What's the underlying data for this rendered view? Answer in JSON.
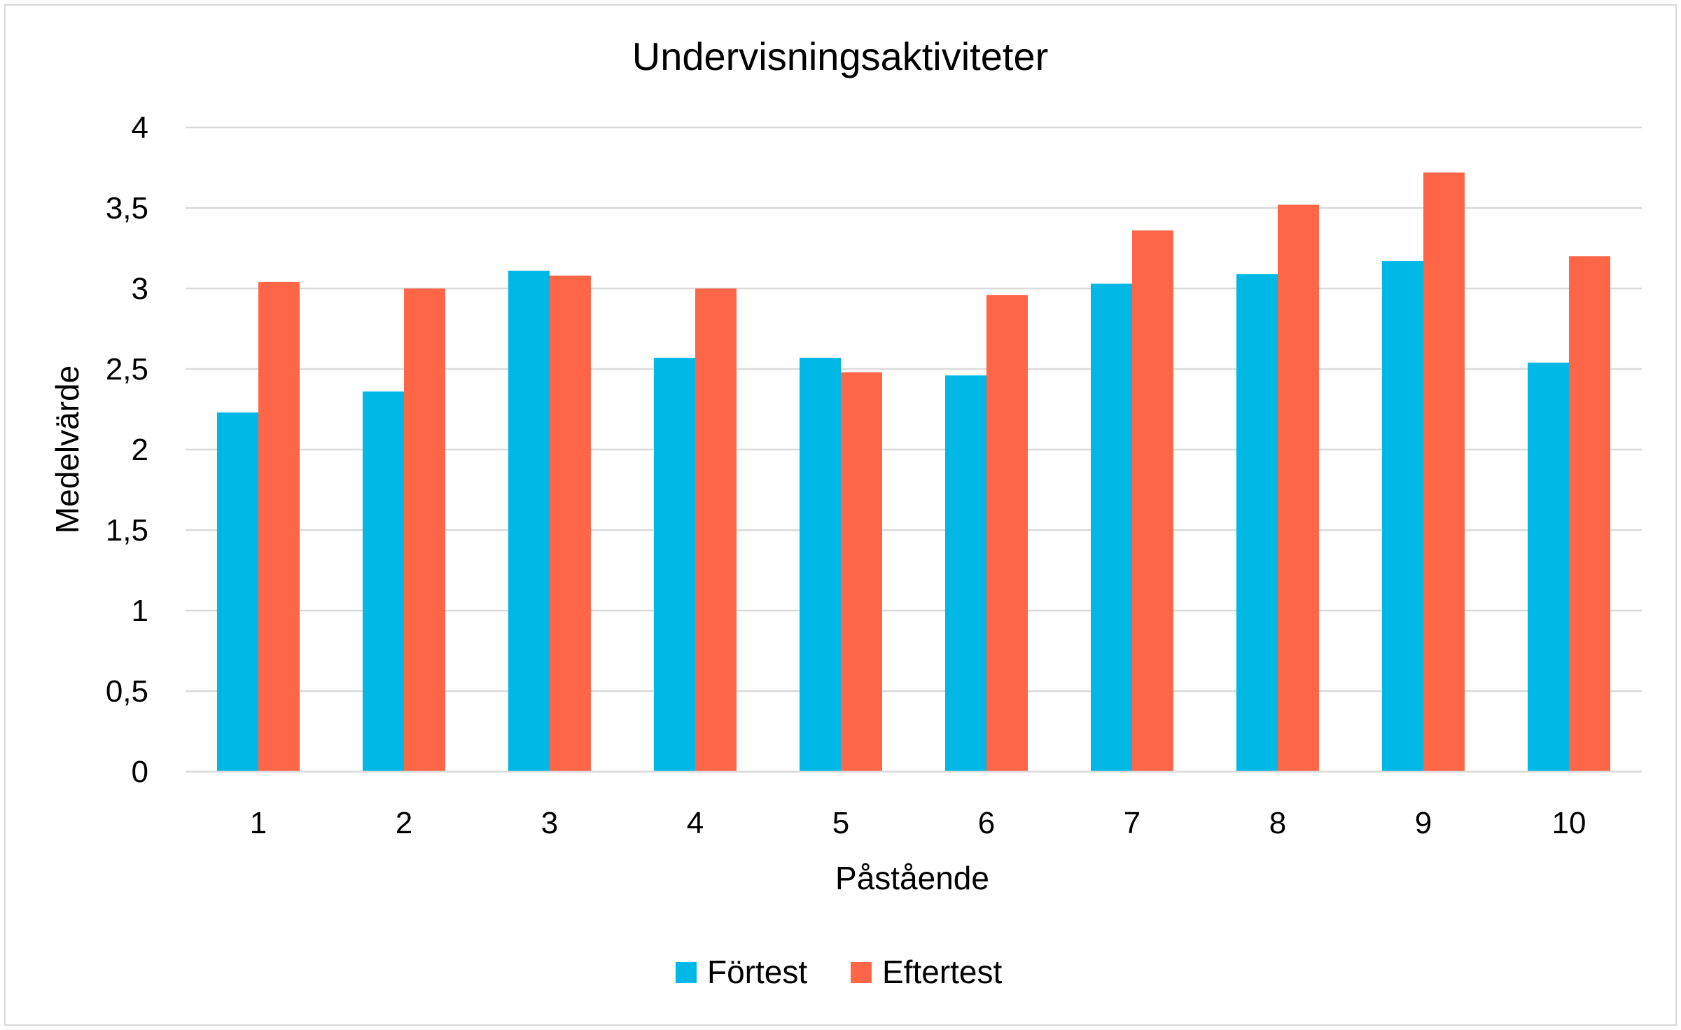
{
  "chart_data": {
    "type": "bar",
    "title": "Undervisningsaktiviteter",
    "xlabel": "Påstående",
    "ylabel": "Medelvärde",
    "categories": [
      "1",
      "2",
      "3",
      "4",
      "5",
      "6",
      "7",
      "8",
      "9",
      "10"
    ],
    "ylim": [
      0,
      4
    ],
    "yticks": [
      0,
      0.5,
      1,
      1.5,
      2,
      2.5,
      3,
      3.5,
      4
    ],
    "ytick_labels": [
      "0",
      "0,5",
      "1",
      "1,5",
      "2",
      "2,5",
      "3",
      "3,5",
      "4"
    ],
    "grid": true,
    "legend_position": "bottom-center",
    "series": [
      {
        "name": "Förtest",
        "color": "#00b8e6",
        "values": [
          2.23,
          2.36,
          3.11,
          2.57,
          2.57,
          2.46,
          3.03,
          3.09,
          3.17,
          2.54
        ]
      },
      {
        "name": "Eftertest",
        "color": "#ff6647",
        "values": [
          3.04,
          3.0,
          3.08,
          3.0,
          2.48,
          2.96,
          3.36,
          3.52,
          3.72,
          3.2
        ]
      }
    ]
  }
}
